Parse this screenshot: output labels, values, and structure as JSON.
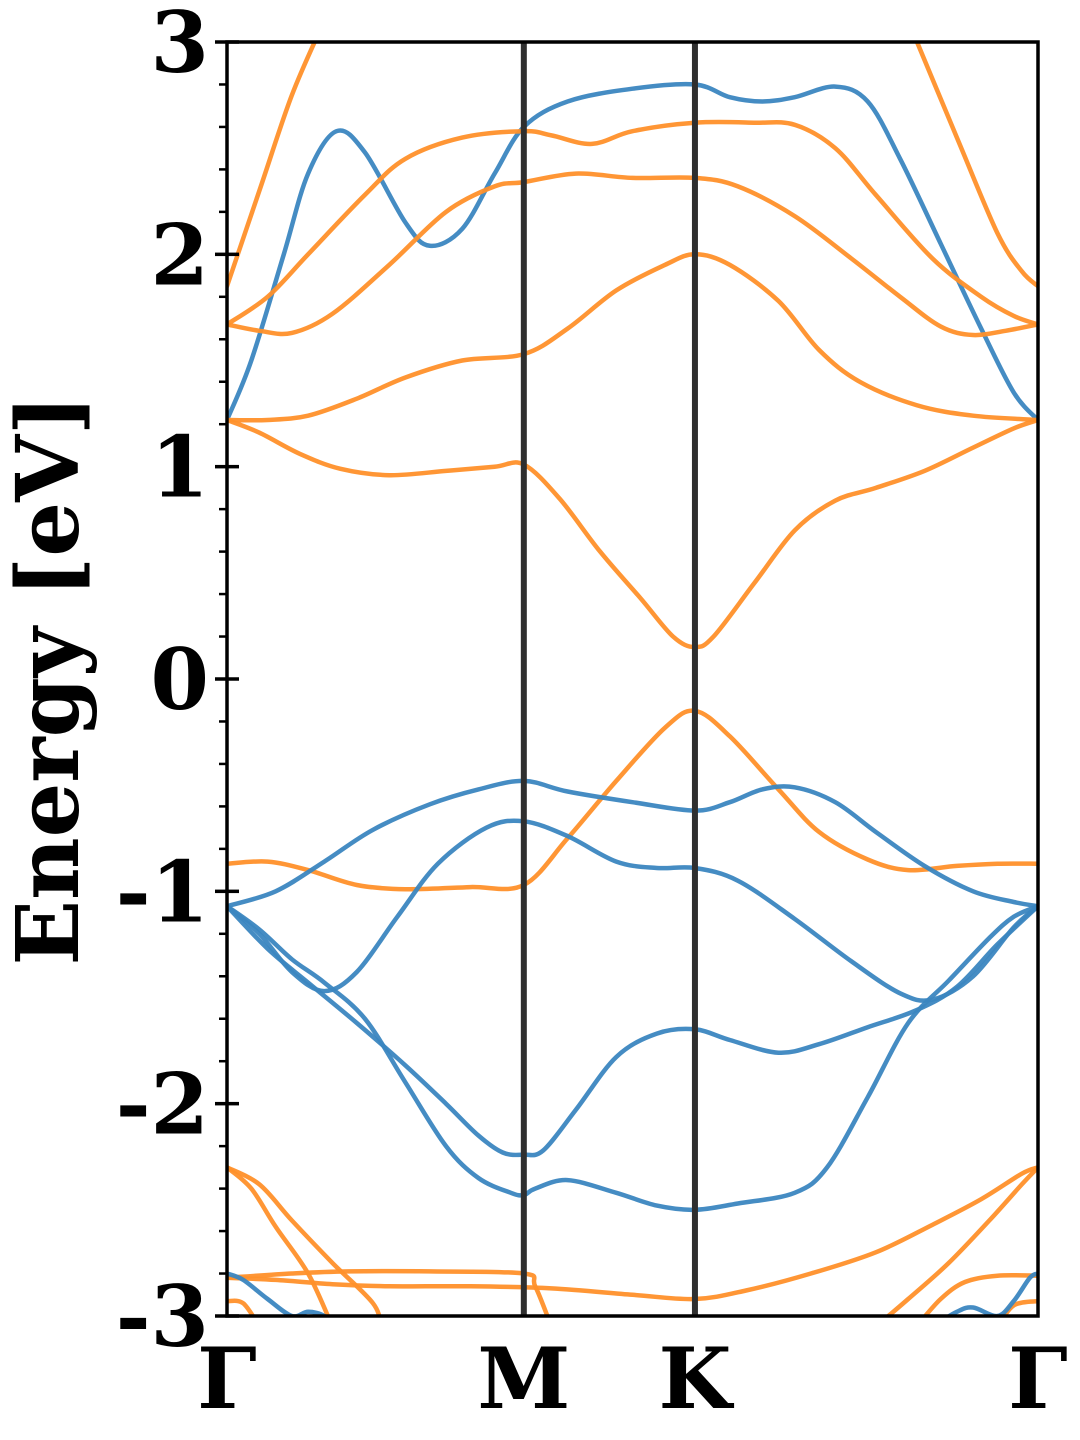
{
  "chart_data": {
    "type": "line",
    "ylabel": "Energy [eV]",
    "ylim": [
      -3,
      3
    ],
    "yticks": [
      "3",
      "2",
      "1",
      "0",
      "-1",
      "-2",
      "-3"
    ],
    "ytick_values": [
      3,
      2,
      1,
      0,
      -1,
      -2,
      -3
    ],
    "xlim": [
      0,
      1
    ],
    "xticks": [
      {
        "label": "Γ",
        "x": 0.0
      },
      {
        "label": "M",
        "x": 0.366
      },
      {
        "label": "K",
        "x": 0.577
      },
      {
        "label": "Γ",
        "x": 1.0
      }
    ],
    "grid": false,
    "colors": {
      "blue": "#3b86c0",
      "orange": "#ff902a",
      "divider": "#2f2f2f"
    },
    "series": [
      {
        "color": "blue",
        "points": [
          [
            0,
            1.22
          ],
          [
            0.03,
            1.5
          ],
          [
            0.07,
            2.0
          ],
          [
            0.1,
            2.38
          ],
          [
            0.135,
            2.58
          ],
          [
            0.17,
            2.48
          ],
          [
            0.22,
            2.15
          ],
          [
            0.25,
            2.04
          ],
          [
            0.29,
            2.12
          ],
          [
            0.33,
            2.38
          ],
          [
            0.366,
            2.6
          ],
          [
            0.42,
            2.72
          ],
          [
            0.5,
            2.78
          ],
          [
            0.577,
            2.8
          ],
          [
            0.62,
            2.74
          ],
          [
            0.66,
            2.72
          ],
          [
            0.7,
            2.74
          ],
          [
            0.75,
            2.79
          ],
          [
            0.79,
            2.72
          ],
          [
            0.83,
            2.45
          ],
          [
            0.88,
            2.05
          ],
          [
            0.93,
            1.65
          ],
          [
            0.97,
            1.35
          ],
          [
            1,
            1.22
          ]
        ]
      },
      {
        "color": "orange",
        "points": [
          [
            0,
            1.85
          ],
          [
            0.04,
            2.3
          ],
          [
            0.08,
            2.75
          ],
          [
            0.12,
            3.1
          ]
        ]
      },
      {
        "color": "orange",
        "points": [
          [
            0.84,
            3.1
          ],
          [
            0.9,
            2.55
          ],
          [
            0.95,
            2.1
          ],
          [
            0.98,
            1.92
          ],
          [
            1,
            1.85
          ]
        ]
      },
      {
        "color": "orange",
        "points": [
          [
            0,
            1.67
          ],
          [
            0.05,
            1.8
          ],
          [
            0.1,
            2.0
          ],
          [
            0.17,
            2.28
          ],
          [
            0.22,
            2.45
          ],
          [
            0.29,
            2.55
          ],
          [
            0.366,
            2.58
          ],
          [
            0.4,
            2.56
          ],
          [
            0.45,
            2.52
          ],
          [
            0.5,
            2.58
          ],
          [
            0.577,
            2.62
          ],
          [
            0.65,
            2.62
          ],
          [
            0.7,
            2.61
          ],
          [
            0.75,
            2.5
          ],
          [
            0.8,
            2.28
          ],
          [
            0.87,
            1.98
          ],
          [
            0.93,
            1.8
          ],
          [
            0.97,
            1.71
          ],
          [
            1,
            1.67
          ]
        ]
      },
      {
        "color": "orange",
        "points": [
          [
            0,
            1.67
          ],
          [
            0.04,
            1.64
          ],
          [
            0.08,
            1.63
          ],
          [
            0.13,
            1.72
          ],
          [
            0.2,
            1.95
          ],
          [
            0.27,
            2.2
          ],
          [
            0.33,
            2.32
          ],
          [
            0.366,
            2.34
          ],
          [
            0.43,
            2.38
          ],
          [
            0.5,
            2.36
          ],
          [
            0.577,
            2.36
          ],
          [
            0.63,
            2.32
          ],
          [
            0.7,
            2.18
          ],
          [
            0.77,
            1.98
          ],
          [
            0.83,
            1.8
          ],
          [
            0.88,
            1.66
          ],
          [
            0.92,
            1.62
          ],
          [
            0.96,
            1.64
          ],
          [
            1,
            1.67
          ]
        ]
      },
      {
        "color": "orange",
        "points": [
          [
            0,
            1.22
          ],
          [
            0.05,
            1.22
          ],
          [
            0.1,
            1.24
          ],
          [
            0.16,
            1.32
          ],
          [
            0.22,
            1.42
          ],
          [
            0.29,
            1.5
          ],
          [
            0.366,
            1.53
          ],
          [
            0.42,
            1.65
          ],
          [
            0.48,
            1.83
          ],
          [
            0.54,
            1.95
          ],
          [
            0.577,
            2.0
          ],
          [
            0.62,
            1.95
          ],
          [
            0.68,
            1.78
          ],
          [
            0.73,
            1.55
          ],
          [
            0.78,
            1.4
          ],
          [
            0.85,
            1.29
          ],
          [
            0.92,
            1.24
          ],
          [
            1,
            1.22
          ]
        ]
      },
      {
        "color": "orange",
        "points": [
          [
            0,
            1.22
          ],
          [
            0.04,
            1.16
          ],
          [
            0.09,
            1.06
          ],
          [
            0.14,
            0.99
          ],
          [
            0.2,
            0.96
          ],
          [
            0.27,
            0.98
          ],
          [
            0.33,
            1.0
          ],
          [
            0.366,
            1.01
          ],
          [
            0.41,
            0.85
          ],
          [
            0.46,
            0.6
          ],
          [
            0.51,
            0.38
          ],
          [
            0.55,
            0.2
          ],
          [
            0.577,
            0.15
          ],
          [
            0.6,
            0.2
          ],
          [
            0.65,
            0.45
          ],
          [
            0.7,
            0.7
          ],
          [
            0.75,
            0.84
          ],
          [
            0.8,
            0.9
          ],
          [
            0.86,
            0.98
          ],
          [
            0.92,
            1.09
          ],
          [
            0.97,
            1.18
          ],
          [
            1,
            1.22
          ]
        ]
      },
      {
        "color": "orange",
        "points": [
          [
            0,
            -0.87
          ],
          [
            0.05,
            -0.86
          ],
          [
            0.1,
            -0.9
          ],
          [
            0.16,
            -0.97
          ],
          [
            0.22,
            -0.99
          ],
          [
            0.3,
            -0.98
          ],
          [
            0.366,
            -0.97
          ],
          [
            0.42,
            -0.75
          ],
          [
            0.48,
            -0.48
          ],
          [
            0.54,
            -0.23
          ],
          [
            0.577,
            -0.15
          ],
          [
            0.62,
            -0.27
          ],
          [
            0.68,
            -0.52
          ],
          [
            0.73,
            -0.72
          ],
          [
            0.79,
            -0.85
          ],
          [
            0.84,
            -0.9
          ],
          [
            0.9,
            -0.88
          ],
          [
            0.95,
            -0.87
          ],
          [
            1,
            -0.87
          ]
        ]
      },
      {
        "color": "blue",
        "points": [
          [
            0,
            -1.07
          ],
          [
            0.06,
            -1.0
          ],
          [
            0.12,
            -0.86
          ],
          [
            0.18,
            -0.71
          ],
          [
            0.25,
            -0.59
          ],
          [
            0.31,
            -0.52
          ],
          [
            0.366,
            -0.48
          ],
          [
            0.42,
            -0.53
          ],
          [
            0.5,
            -0.58
          ],
          [
            0.577,
            -0.62
          ],
          [
            0.62,
            -0.58
          ],
          [
            0.66,
            -0.52
          ],
          [
            0.7,
            -0.51
          ],
          [
            0.75,
            -0.58
          ],
          [
            0.8,
            -0.72
          ],
          [
            0.86,
            -0.88
          ],
          [
            0.92,
            -1.0
          ],
          [
            0.97,
            -1.05
          ],
          [
            1,
            -1.07
          ]
        ]
      },
      {
        "color": "blue",
        "points": [
          [
            0,
            -1.07
          ],
          [
            0.04,
            -1.2
          ],
          [
            0.08,
            -1.38
          ],
          [
            0.12,
            -1.47
          ],
          [
            0.16,
            -1.38
          ],
          [
            0.21,
            -1.12
          ],
          [
            0.26,
            -0.87
          ],
          [
            0.32,
            -0.7
          ],
          [
            0.366,
            -0.67
          ],
          [
            0.42,
            -0.74
          ],
          [
            0.48,
            -0.86
          ],
          [
            0.53,
            -0.89
          ],
          [
            0.577,
            -0.89
          ],
          [
            0.63,
            -0.95
          ],
          [
            0.7,
            -1.13
          ],
          [
            0.77,
            -1.33
          ],
          [
            0.83,
            -1.48
          ],
          [
            0.87,
            -1.51
          ],
          [
            0.92,
            -1.4
          ],
          [
            0.97,
            -1.17
          ],
          [
            1,
            -1.07
          ]
        ]
      },
      {
        "color": "blue",
        "points": [
          [
            0,
            -1.07
          ],
          [
            0.05,
            -1.27
          ],
          [
            0.1,
            -1.43
          ],
          [
            0.16,
            -1.62
          ],
          [
            0.22,
            -1.82
          ],
          [
            0.27,
            -2.0
          ],
          [
            0.31,
            -2.15
          ],
          [
            0.34,
            -2.23
          ],
          [
            0.366,
            -2.24
          ],
          [
            0.39,
            -2.22
          ],
          [
            0.43,
            -2.03
          ],
          [
            0.48,
            -1.78
          ],
          [
            0.53,
            -1.67
          ],
          [
            0.577,
            -1.65
          ],
          [
            0.62,
            -1.7
          ],
          [
            0.68,
            -1.76
          ],
          [
            0.73,
            -1.72
          ],
          [
            0.79,
            -1.64
          ],
          [
            0.85,
            -1.56
          ],
          [
            0.9,
            -1.45
          ],
          [
            0.95,
            -1.25
          ],
          [
            1,
            -1.07
          ]
        ]
      },
      {
        "color": "blue",
        "points": [
          [
            0,
            -1.07
          ],
          [
            0.04,
            -1.18
          ],
          [
            0.08,
            -1.32
          ],
          [
            0.12,
            -1.43
          ],
          [
            0.17,
            -1.6
          ],
          [
            0.22,
            -1.9
          ],
          [
            0.27,
            -2.2
          ],
          [
            0.31,
            -2.35
          ],
          [
            0.35,
            -2.42
          ],
          [
            0.366,
            -2.43
          ],
          [
            0.38,
            -2.4
          ],
          [
            0.42,
            -2.36
          ],
          [
            0.48,
            -2.42
          ],
          [
            0.53,
            -2.48
          ],
          [
            0.577,
            -2.5
          ],
          [
            0.63,
            -2.47
          ],
          [
            0.7,
            -2.42
          ],
          [
            0.74,
            -2.3
          ],
          [
            0.79,
            -1.97
          ],
          [
            0.84,
            -1.62
          ],
          [
            0.89,
            -1.42
          ],
          [
            0.94,
            -1.22
          ],
          [
            0.97,
            -1.12
          ],
          [
            1,
            -1.07
          ]
        ]
      },
      {
        "color": "orange",
        "points": [
          [
            0,
            -2.3
          ],
          [
            0.04,
            -2.38
          ],
          [
            0.08,
            -2.55
          ],
          [
            0.13,
            -2.75
          ],
          [
            0.18,
            -2.94
          ],
          [
            0.19,
            -3.05
          ]
        ]
      },
      {
        "color": "orange",
        "points": [
          [
            0,
            -2.3
          ],
          [
            0.03,
            -2.4
          ],
          [
            0.06,
            -2.58
          ],
          [
            0.1,
            -2.8
          ],
          [
            0.13,
            -3.05
          ]
        ]
      },
      {
        "color": "orange",
        "points": [
          [
            0,
            -2.82
          ],
          [
            0.08,
            -2.8
          ],
          [
            0.15,
            -2.79
          ],
          [
            0.25,
            -2.79
          ],
          [
            0.366,
            -2.8
          ],
          [
            0.38,
            -2.86
          ],
          [
            0.4,
            -3.05
          ]
        ]
      },
      {
        "color": "orange",
        "points": [
          [
            0,
            -2.82
          ],
          [
            0.06,
            -2.83
          ],
          [
            0.13,
            -2.85
          ],
          [
            0.2,
            -2.86
          ],
          [
            0.3,
            -2.86
          ],
          [
            0.4,
            -2.87
          ],
          [
            0.5,
            -2.9
          ],
          [
            0.577,
            -2.92
          ],
          [
            0.64,
            -2.88
          ],
          [
            0.72,
            -2.8
          ],
          [
            0.8,
            -2.7
          ],
          [
            0.87,
            -2.57
          ],
          [
            0.93,
            -2.45
          ],
          [
            0.98,
            -2.33
          ],
          [
            1,
            -2.3
          ]
        ]
      },
      {
        "color": "orange",
        "points": [
          [
            0,
            -2.93
          ],
          [
            0.02,
            -2.94
          ],
          [
            0.04,
            -3.05
          ]
        ]
      },
      {
        "color": "orange",
        "points": [
          [
            0.8,
            -3.05
          ],
          [
            0.84,
            -2.92
          ],
          [
            0.89,
            -2.75
          ],
          [
            0.94,
            -2.55
          ],
          [
            0.98,
            -2.38
          ],
          [
            1,
            -2.3
          ]
        ]
      },
      {
        "color": "orange",
        "points": [
          [
            0.85,
            -3.05
          ],
          [
            0.88,
            -2.92
          ],
          [
            0.91,
            -2.84
          ],
          [
            0.95,
            -2.81
          ],
          [
            1,
            -2.81
          ]
        ]
      },
      {
        "color": "orange",
        "points": [
          [
            0.95,
            -3.05
          ],
          [
            0.97,
            -2.95
          ],
          [
            1,
            -2.93
          ]
        ]
      },
      {
        "color": "blue",
        "points": [
          [
            0,
            -2.8
          ],
          [
            0.02,
            -2.83
          ],
          [
            0.05,
            -2.92
          ],
          [
            0.08,
            -3.0
          ],
          [
            0.1,
            -2.98
          ],
          [
            0.12,
            -3.0
          ],
          [
            0.13,
            -3.05
          ]
        ]
      },
      {
        "color": "blue",
        "points": [
          [
            0.87,
            -3.05
          ],
          [
            0.9,
            -2.98
          ],
          [
            0.92,
            -2.96
          ],
          [
            0.95,
            -3.0
          ],
          [
            0.97,
            -2.93
          ],
          [
            0.99,
            -2.82
          ],
          [
            1,
            -2.8
          ]
        ]
      }
    ]
  }
}
